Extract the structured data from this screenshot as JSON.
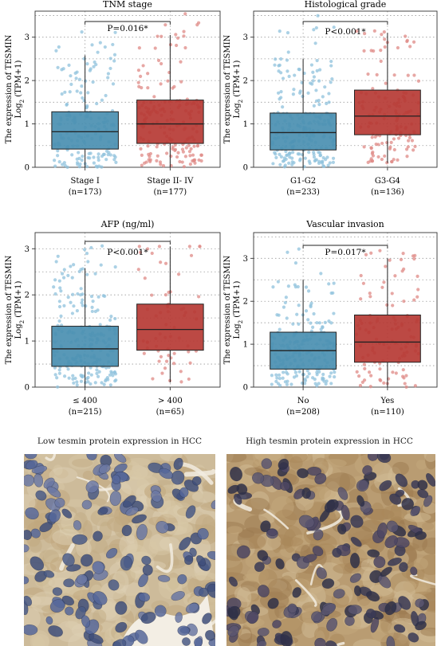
{
  "chart_data": [
    {
      "type": "box",
      "title": "TNM stage",
      "ylabel": "The expression of TESMIN",
      "ylabel2_prefix": "Log",
      "ylabel2_sub": "2",
      "ylabel2_suffix": " (TPM+1)",
      "ylim": [
        0,
        3.6
      ],
      "yticks": [
        0,
        1,
        2,
        3
      ],
      "grid": true,
      "pvalue": "P=0.016*",
      "groups": [
        {
          "name": "Stage I",
          "n": "(n=173)",
          "color": "#4a8fb1",
          "point_color": "#8fc1dc",
          "min": 0.0,
          "q1": 0.42,
          "median": 0.82,
          "q3": 1.28,
          "max": 2.58,
          "pmax": 3.15
        },
        {
          "name": "Stage II- IV",
          "n": "(n=177)",
          "color": "#b63a34",
          "point_color": "#df8a85",
          "min": 0.0,
          "q1": 0.55,
          "median": 1.0,
          "q3": 1.55,
          "max": 3.05,
          "pmax": 3.55
        }
      ]
    },
    {
      "type": "box",
      "title": "Histological grade",
      "ylabel": "The expression of TESMIN",
      "ylabel2_prefix": "Log",
      "ylabel2_sub": "2",
      "ylabel2_suffix": " (TPM+1)",
      "ylim": [
        0,
        3.6
      ],
      "yticks": [
        0,
        1,
        2,
        3
      ],
      "grid": true,
      "pvalue": "P<0.001*",
      "groups": [
        {
          "name": "G1-G2",
          "n": "(n=233)",
          "color": "#4a8fb1",
          "point_color": "#8fc1dc",
          "min": 0.0,
          "q1": 0.4,
          "median": 0.8,
          "q3": 1.25,
          "max": 2.5,
          "pmax": 3.55
        },
        {
          "name": "G3-G4",
          "n": "(n=136)",
          "color": "#b63a34",
          "point_color": "#df8a85",
          "min": 0.1,
          "q1": 0.75,
          "median": 1.18,
          "q3": 1.78,
          "max": 3.1,
          "pmax": 3.15
        }
      ]
    },
    {
      "type": "box",
      "title": "AFP (ng/ml)",
      "ylabel": "The expression of TESMIN",
      "ylabel2_prefix": "Log",
      "ylabel2_sub": "2",
      "ylabel2_suffix": " (TPM+1)",
      "ylim": [
        0,
        3.35
      ],
      "yticks": [
        0,
        1,
        2,
        3
      ],
      "grid": true,
      "pvalue": "P<0.001*",
      "groups": [
        {
          "name": "≤ 400",
          "n": "(n=215)",
          "color": "#4a8fb1",
          "point_color": "#8fc1dc",
          "min": 0.0,
          "q1": 0.45,
          "median": 0.83,
          "q3": 1.32,
          "max": 2.58,
          "pmax": 3.15
        },
        {
          "name": "> 400",
          "n": "(n=65)",
          "color": "#b63a34",
          "point_color": "#df8a85",
          "min": 0.1,
          "q1": 0.8,
          "median": 1.25,
          "q3": 1.8,
          "max": 3.05,
          "pmax": 3.05
        }
      ]
    },
    {
      "type": "box",
      "title": "Vascular invasion",
      "ylabel": "The expression of TESMIN",
      "ylabel2_prefix": "Log",
      "ylabel2_sub": "2",
      "ylabel2_suffix": " (TPM+1)",
      "ylim": [
        0,
        3.6
      ],
      "yticks": [
        0,
        1,
        2,
        3
      ],
      "grid": true,
      "pvalue": "P=0.017*",
      "groups": [
        {
          "name": "No",
          "n": "(n=208)",
          "color": "#4a8fb1",
          "point_color": "#8fc1dc",
          "min": 0.0,
          "q1": 0.42,
          "median": 0.85,
          "q3": 1.28,
          "max": 2.5,
          "pmax": 3.55
        },
        {
          "name": "Yes",
          "n": "(n=110)",
          "color": "#b63a34",
          "point_color": "#df8a85",
          "min": 0.0,
          "q1": 0.58,
          "median": 1.05,
          "q3": 1.68,
          "max": 3.0,
          "pmax": 3.2
        }
      ]
    }
  ],
  "micrographs": [
    {
      "title": "Low tesmin protein expression in HCC",
      "tone": "low"
    },
    {
      "title": "High tesmin protein expression in HCC",
      "tone": "high"
    }
  ]
}
